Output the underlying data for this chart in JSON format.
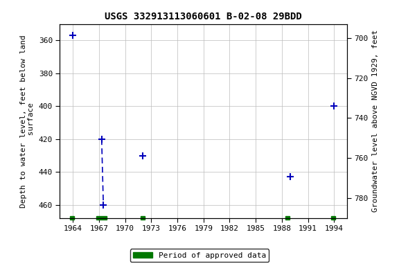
{
  "title": "USGS 332913113060601 B-02-08 29BDD",
  "ylabel_left": "Depth to water level, feet below land\n surface",
  "ylabel_right": "Groundwater level above NGVD 1929, feet",
  "ylim_left": [
    350,
    468
  ],
  "ylim_right": [
    790,
    693
  ],
  "xlim": [
    1962.5,
    1995.5
  ],
  "xticks": [
    1964,
    1967,
    1970,
    1973,
    1976,
    1979,
    1982,
    1985,
    1988,
    1991,
    1994
  ],
  "yticks_left": [
    360,
    380,
    400,
    420,
    440,
    460
  ],
  "yticks_right": [
    780,
    760,
    740,
    720,
    700
  ],
  "data_points": [
    {
      "year": 1964.0,
      "depth": 357.0
    },
    {
      "year": 1967.3,
      "depth": 420.0
    },
    {
      "year": 1967.5,
      "depth": 460.0
    },
    {
      "year": 1972.0,
      "depth": 430.0
    },
    {
      "year": 1989.0,
      "depth": 443.0
    },
    {
      "year": 1994.0,
      "depth": 400.0
    }
  ],
  "dashed_line": [
    {
      "year": 1967.3,
      "depth": 420.0
    },
    {
      "year": 1967.5,
      "depth": 460.0
    }
  ],
  "approved_periods": [
    {
      "start": 1963.7,
      "end": 1964.15
    },
    {
      "start": 1966.7,
      "end": 1967.85
    },
    {
      "start": 1971.8,
      "end": 1972.25
    },
    {
      "start": 1988.4,
      "end": 1988.85
    },
    {
      "start": 1993.7,
      "end": 1994.15
    }
  ],
  "point_color": "#0000bb",
  "line_color": "#0000bb",
  "approved_color": "#007700",
  "bg_color": "#ffffff",
  "grid_color": "#bbbbbb",
  "title_fontsize": 10,
  "label_fontsize": 8,
  "tick_fontsize": 8,
  "font_family": "monospace"
}
